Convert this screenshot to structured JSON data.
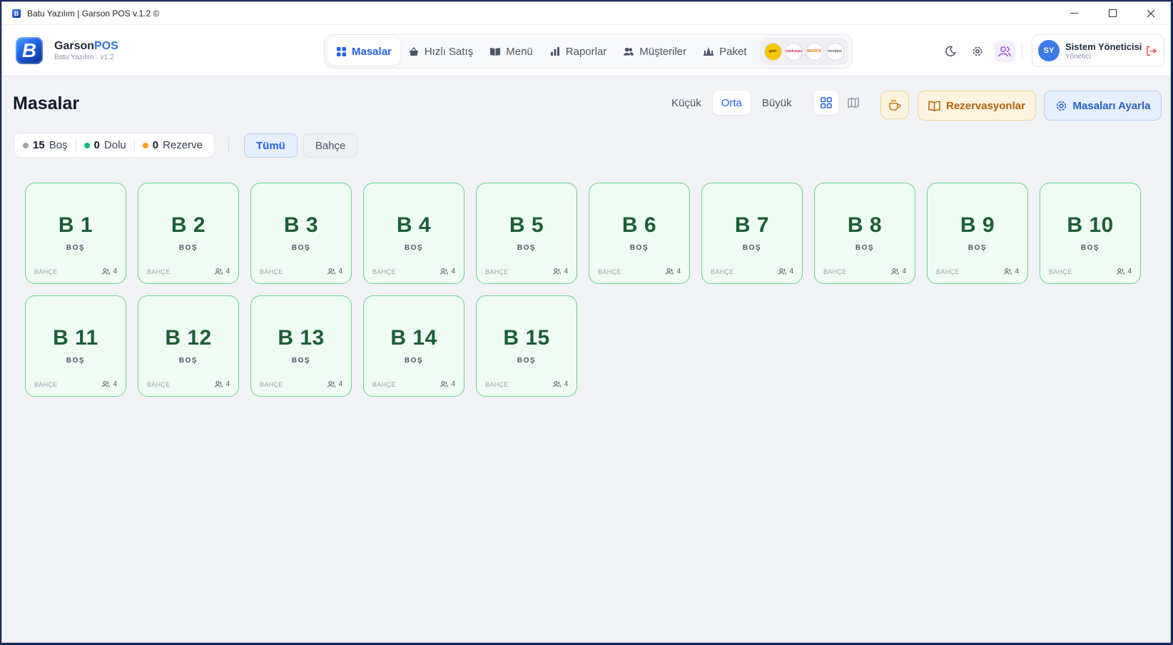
{
  "window": {
    "title": "Batu Yazılım | Garson POS v.1.2 ©",
    "app_icon": "B"
  },
  "brand": {
    "logo_letter": "B",
    "name_main": "Garson",
    "name_accent": "POS",
    "subtitle": "Batu Yazılım · v1.2"
  },
  "nav": {
    "items": [
      {
        "label": "Masalar",
        "icon": "grid-icon",
        "active": true
      },
      {
        "label": "Hızlı Satış",
        "icon": "basket-icon"
      },
      {
        "label": "Menü",
        "icon": "book-icon"
      },
      {
        "label": "Raporlar",
        "icon": "bar-chart-icon"
      },
      {
        "label": "Müşteriler",
        "icon": "users-icon"
      },
      {
        "label": "Paket",
        "icon": "package-icon"
      }
    ],
    "partners": [
      "getir",
      "Yemeksepeti",
      "MIGROS",
      "trendyol"
    ]
  },
  "user": {
    "initials": "SY",
    "name": "Sistem Yöneticisi",
    "role": "Yönetici"
  },
  "page": {
    "title": "Masalar",
    "sizes": [
      "Küçük",
      "Orta",
      "Büyük"
    ],
    "active_size": "Orta",
    "reservations_label": "Rezervasyonlar",
    "setup_label": "Masaları Ayarla"
  },
  "stats": {
    "empty_count": "15",
    "empty_label": "Boş",
    "full_count": "0",
    "full_label": "Dolu",
    "reserved_count": "0",
    "reserved_label": "Rezerve"
  },
  "filters": [
    "Tümü",
    "Bahçe"
  ],
  "colors": {
    "accent": "#2563eb",
    "empty_dot": "#9aa3b2",
    "full_dot": "#10b981",
    "reserved_dot": "#f59e0b",
    "table_bg": "#eefcf3",
    "table_border": "#69d392"
  },
  "tables": [
    {
      "name": "B 1",
      "status": "BOŞ",
      "area": "BAHÇE",
      "capacity": "4"
    },
    {
      "name": "B 2",
      "status": "BOŞ",
      "area": "BAHÇE",
      "capacity": "4"
    },
    {
      "name": "B 3",
      "status": "BOŞ",
      "area": "BAHÇE",
      "capacity": "4"
    },
    {
      "name": "B 4",
      "status": "BOŞ",
      "area": "BAHÇE",
      "capacity": "4"
    },
    {
      "name": "B 5",
      "status": "BOŞ",
      "area": "BAHÇE",
      "capacity": "4"
    },
    {
      "name": "B 6",
      "status": "BOŞ",
      "area": "BAHÇE",
      "capacity": "4"
    },
    {
      "name": "B 7",
      "status": "BOŞ",
      "area": "BAHÇE",
      "capacity": "4"
    },
    {
      "name": "B 8",
      "status": "BOŞ",
      "area": "BAHÇE",
      "capacity": "4"
    },
    {
      "name": "B 9",
      "status": "BOŞ",
      "area": "BAHÇE",
      "capacity": "4"
    },
    {
      "name": "B 10",
      "status": "BOŞ",
      "area": "BAHÇE",
      "capacity": "4"
    },
    {
      "name": "B 11",
      "status": "BOŞ",
      "area": "BAHÇE",
      "capacity": "4"
    },
    {
      "name": "B 12",
      "status": "BOŞ",
      "area": "BAHÇE",
      "capacity": "4"
    },
    {
      "name": "B 13",
      "status": "BOŞ",
      "area": "BAHÇE",
      "capacity": "4"
    },
    {
      "name": "B 14",
      "status": "BOŞ",
      "area": "BAHÇE",
      "capacity": "4"
    },
    {
      "name": "B 15",
      "status": "BOŞ",
      "area": "BAHÇE",
      "capacity": "4"
    }
  ]
}
